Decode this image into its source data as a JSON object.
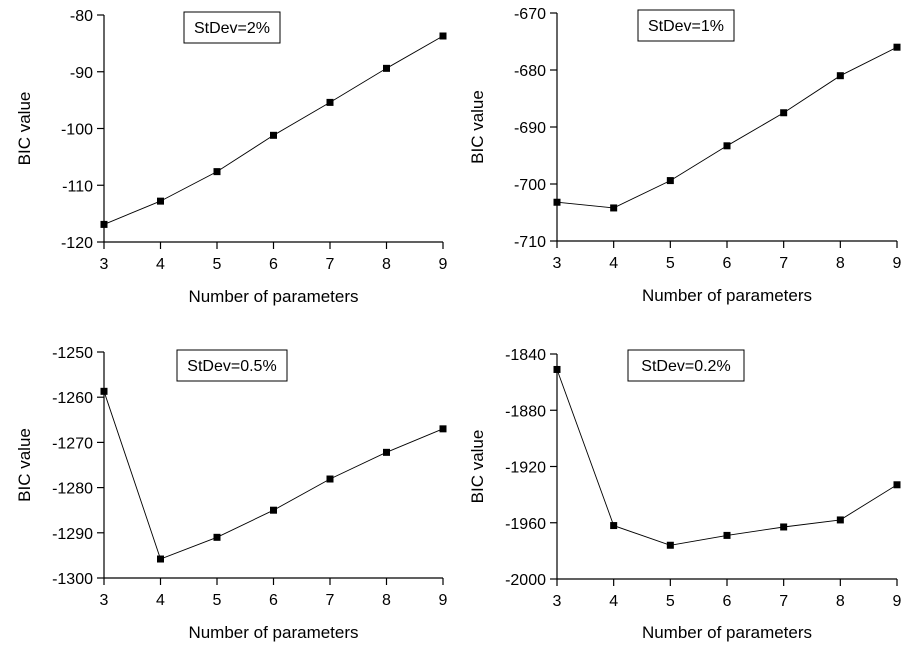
{
  "chart_data": [
    {
      "type": "line",
      "annotation": "StDev=2%",
      "xlabel": "Number of parameters",
      "ylabel": "BIC value",
      "x": [
        3,
        4,
        5,
        6,
        7,
        8,
        9
      ],
      "values": [
        -116.9,
        -112.8,
        -107.6,
        -101.2,
        -95.4,
        -89.4,
        -83.7
      ],
      "xlim": [
        3,
        9
      ],
      "ylim": [
        -120,
        -80
      ],
      "yticks": [
        -80,
        -90,
        -100,
        -110,
        -120
      ],
      "xticks": [
        3,
        4,
        5,
        6,
        7,
        8,
        9
      ],
      "grid": false
    },
    {
      "type": "line",
      "annotation": "StDev=1%",
      "xlabel": "Number of parameters",
      "ylabel": "BIC value",
      "x": [
        3,
        4,
        5,
        6,
        7,
        8,
        9
      ],
      "values": [
        -703.2,
        -704.2,
        -699.4,
        -693.3,
        -687.5,
        -681.0,
        -676.0
      ],
      "xlim": [
        3,
        9
      ],
      "ylim": [
        -710,
        -670
      ],
      "yticks": [
        -670,
        -680,
        -690,
        -700,
        -710
      ],
      "xticks": [
        3,
        4,
        5,
        6,
        7,
        8,
        9
      ],
      "grid": false
    },
    {
      "type": "line",
      "annotation": "StDev=0.5%",
      "xlabel": "Number of parameters",
      "ylabel": "BIC value",
      "x": [
        3,
        4,
        5,
        6,
        7,
        8,
        9
      ],
      "values": [
        -1258.7,
        -1295.8,
        -1291.0,
        -1285.0,
        -1278.1,
        -1272.2,
        -1267.0
      ],
      "xlim": [
        3,
        9
      ],
      "ylim": [
        -1300,
        -1250
      ],
      "yticks": [
        -1250,
        -1260,
        -1270,
        -1280,
        -1290,
        -1300
      ],
      "xticks": [
        3,
        4,
        5,
        6,
        7,
        8,
        9
      ],
      "grid": false
    },
    {
      "type": "line",
      "annotation": "StDev=0.2%",
      "xlabel": "Number of parameters",
      "ylabel": "BIC value",
      "x": [
        3,
        4,
        5,
        6,
        7,
        8,
        9
      ],
      "values": [
        -1851,
        -1962,
        -1976,
        -1969,
        -1963,
        -1958,
        -1933
      ],
      "xlim": [
        3,
        9
      ],
      "ylim": [
        -2000,
        -1840
      ],
      "yticks": [
        -1840,
        -1880,
        -1920,
        -1960,
        -2000
      ],
      "xticks": [
        3,
        4,
        5,
        6,
        7,
        8,
        9
      ],
      "grid": false
    }
  ]
}
